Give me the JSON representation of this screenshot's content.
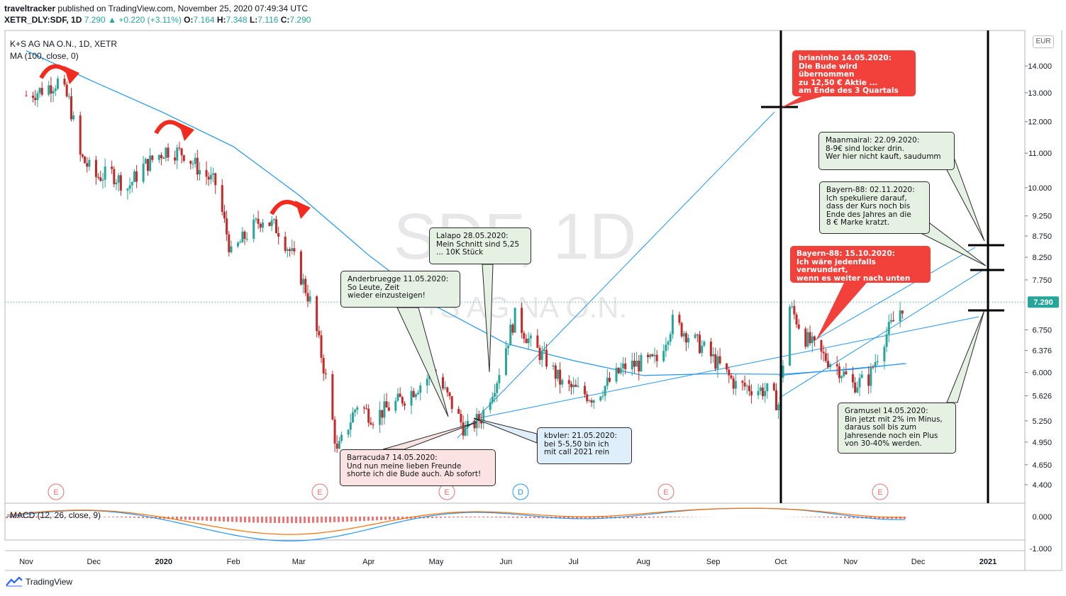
{
  "header": {
    "user": "traveltracker",
    "published": " published on TradingView.com, November 25, 2020 07:49:34 UTC",
    "symbol": "XETR_DLY:SDF, 1D",
    "last": "7.290",
    "change": "+0.220 (+3.11%)",
    "o_label": "O:",
    "o": "7.164",
    "h_label": "H:",
    "h": "7.348",
    "l_label": "L:",
    "l": "7.116",
    "c_label": "C:",
    "c": "7.290"
  },
  "legend": {
    "series": "K+S AG NA O.N., 1D, XETR",
    "ma": "MA (100, close, 0)",
    "macd": "MACD (12, 26, close, 9)"
  },
  "watermark": {
    "ticker": "SDF, 1D",
    "name": "K+S AG NA O.N."
  },
  "currency": "EUR",
  "price_label": "7.290",
  "colors": {
    "up": "#26a69a",
    "down": "#c62828",
    "ma": "#2196f3",
    "annotation_red": "#f2413a",
    "green_note": "#e4f1e3"
  },
  "chart_data": {
    "type": "candlestick",
    "y_scale": "log",
    "ylim": [
      4.2,
      15.0
    ],
    "y_ticks": [
      "14.000",
      "13.000",
      "12.000",
      "11.000",
      "10.000",
      "9.250",
      "8.750",
      "8.250",
      "7.750",
      "7.290",
      "6.750",
      "6.376",
      "6.000",
      "5.626",
      "5.250",
      "4.950",
      "4.650",
      "4.400"
    ],
    "x_ticks": [
      "Nov",
      "Dec",
      "2020",
      "Feb",
      "Mar",
      "Apr",
      "May",
      "Jun",
      "Jul",
      "Aug",
      "Sep",
      "Oct",
      "Nov",
      "Dec",
      "2021"
    ],
    "last_close": 7.29,
    "close_series": [
      {
        "date": "2019-11-01",
        "close": 12.9
      },
      {
        "date": "2019-11-08",
        "close": 13.1
      },
      {
        "date": "2019-11-15",
        "close": 13.4
      },
      {
        "date": "2019-11-20",
        "close": 12.7
      },
      {
        "date": "2019-11-25",
        "close": 10.9
      },
      {
        "date": "2019-12-02",
        "close": 10.3
      },
      {
        "date": "2019-12-09",
        "close": 10.4
      },
      {
        "date": "2019-12-16",
        "close": 10.0
      },
      {
        "date": "2019-12-23",
        "close": 10.6
      },
      {
        "date": "2020-01-02",
        "close": 11.1
      },
      {
        "date": "2020-01-10",
        "close": 11.0
      },
      {
        "date": "2020-01-17",
        "close": 10.5
      },
      {
        "date": "2020-01-24",
        "close": 10.1
      },
      {
        "date": "2020-01-31",
        "close": 8.3
      },
      {
        "date": "2020-02-07",
        "close": 8.8
      },
      {
        "date": "2020-02-14",
        "close": 9.2
      },
      {
        "date": "2020-02-21",
        "close": 8.9
      },
      {
        "date": "2020-02-28",
        "close": 8.2
      },
      {
        "date": "2020-03-06",
        "close": 7.3
      },
      {
        "date": "2020-03-13",
        "close": 5.9
      },
      {
        "date": "2020-03-18",
        "close": 4.8
      },
      {
        "date": "2020-03-27",
        "close": 5.5
      },
      {
        "date": "2020-04-03",
        "close": 5.3
      },
      {
        "date": "2020-04-17",
        "close": 5.6
      },
      {
        "date": "2020-04-30",
        "close": 6.0
      },
      {
        "date": "2020-05-14",
        "close": 5.1
      },
      {
        "date": "2020-05-21",
        "close": 5.3
      },
      {
        "date": "2020-05-28",
        "close": 5.9
      },
      {
        "date": "2020-06-05",
        "close": 7.0
      },
      {
        "date": "2020-06-12",
        "close": 6.5
      },
      {
        "date": "2020-06-19",
        "close": 6.2
      },
      {
        "date": "2020-06-26",
        "close": 5.8
      },
      {
        "date": "2020-07-10",
        "close": 5.6
      },
      {
        "date": "2020-07-24",
        "close": 6.1
      },
      {
        "date": "2020-08-07",
        "close": 6.2
      },
      {
        "date": "2020-08-14",
        "close": 6.9
      },
      {
        "date": "2020-08-28",
        "close": 6.4
      },
      {
        "date": "2020-09-11",
        "close": 5.8
      },
      {
        "date": "2020-09-25",
        "close": 5.7
      },
      {
        "date": "2020-09-30",
        "close": 5.5
      },
      {
        "date": "2020-10-05",
        "close": 7.2
      },
      {
        "date": "2020-10-12",
        "close": 6.6
      },
      {
        "date": "2020-10-19",
        "close": 6.3
      },
      {
        "date": "2020-10-26",
        "close": 6.1
      },
      {
        "date": "2020-11-02",
        "close": 5.8
      },
      {
        "date": "2020-11-09",
        "close": 5.9
      },
      {
        "date": "2020-11-16",
        "close": 6.6
      },
      {
        "date": "2020-11-25",
        "close": 7.29
      }
    ],
    "ma100": [
      {
        "date": "2019-11-01",
        "value": 14.6
      },
      {
        "date": "2019-12-01",
        "value": 13.4
      },
      {
        "date": "2020-01-01",
        "value": 12.3
      },
      {
        "date": "2020-02-01",
        "value": 11.2
      },
      {
        "date": "2020-03-01",
        "value": 9.8
      },
      {
        "date": "2020-04-01",
        "value": 8.3
      },
      {
        "date": "2020-05-01",
        "value": 7.2
      },
      {
        "date": "2020-06-01",
        "value": 6.5
      },
      {
        "date": "2020-07-01",
        "value": 6.2
      },
      {
        "date": "2020-08-01",
        "value": 5.95
      },
      {
        "date": "2020-09-01",
        "value": 5.98
      },
      {
        "date": "2020-10-01",
        "value": 5.97
      },
      {
        "date": "2020-11-01",
        "value": 6.05
      },
      {
        "date": "2020-11-25",
        "value": 6.15
      }
    ],
    "target_levels": [
      12.5,
      8.5,
      8.0,
      7.0
    ],
    "events": [
      "E",
      "E",
      "E",
      "D",
      "E",
      "E"
    ]
  },
  "annotations": [
    {
      "id": "brianinho",
      "style": "red",
      "text": "brianinho 14.05.2020:\nDie Bude wird übernommen\nzu 12,50 € Aktie ...\nam Ende des 3 Quartals"
    },
    {
      "id": "maanmairal",
      "style": "green",
      "text": "Maanmairal:  22.09.2020:\n8-9€ sind locker drin.\nWer hier nicht kauft, saudumm"
    },
    {
      "id": "bayern88b",
      "style": "green",
      "text": "Bayern-88: 02.11.2020:\nIch spekuliere darauf,\ndass der Kurs noch bis\nEnde des Jahres an die\n8 € Marke kratzt."
    },
    {
      "id": "bayern88a",
      "style": "red",
      "text": "Bayern-88: 15.10.2020:\nIch wäre jedenfalls verwundert,\nwenn es weiter nach unten geht"
    },
    {
      "id": "lalapo",
      "style": "green",
      "text": "Lalapo 28.05.2020:\nMein Schnitt sind 5,25\n... 10K Stück"
    },
    {
      "id": "anderbruegge",
      "style": "green",
      "text": "Anderbruegge 11.05.2020:\nSo Leute, Zeit\nwieder einzusteigen!"
    },
    {
      "id": "kbvler",
      "style": "blue",
      "text": "kbvler:  21.05.2020:\nbei 5-5,50 bin ich\nmit call 2021 rein"
    },
    {
      "id": "barracuda",
      "style": "pink",
      "text": "Barracuda7 14.05.2020:\nUnd nun meine lieben Freunde\nshorte ich die Bude auch. Ab sofort!"
    },
    {
      "id": "gramusel",
      "style": "green",
      "text": "Gramusel 14.05.2020:\nBin jetzt mit 2% im Minus,\ndaraus soll bis zum\nJahresende noch ein Plus\nvon 30-40% werden."
    }
  ],
  "macd_ticks": [
    "0.000",
    "-1.000"
  ],
  "footer": {
    "brand": "TradingView"
  }
}
